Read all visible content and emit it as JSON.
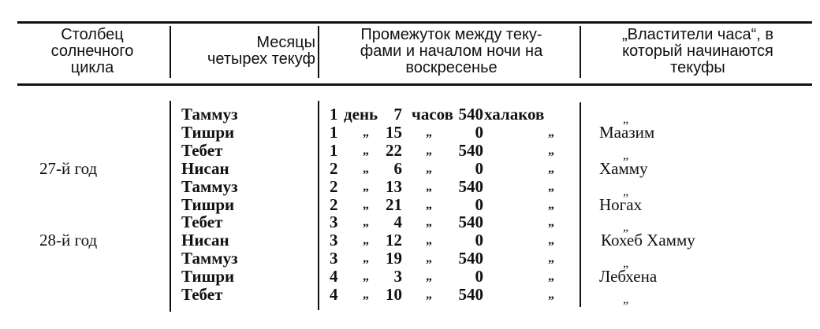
{
  "headers": [
    "Столбец солнечного цикла",
    "Месяцы четырех текуф",
    "Промежуток между текуфами и началом ночи на воскресенье",
    "„Властители часа“, в который начинаются текуфы"
  ],
  "header_lines": [
    [
      "Столбец",
      "солнечного",
      "цикла"
    ],
    [
      "Месяцы",
      "четырех текуф"
    ],
    [
      "Промежуток между теку-",
      "фами и началом ночи на",
      "воскресенье"
    ],
    [
      "„Властители часа“, в",
      "который начинаются",
      "текуфы"
    ]
  ],
  "years": [
    {
      "label": "27-й год",
      "row": 3
    },
    {
      "label": "28-й год",
      "row": 7
    }
  ],
  "rows": [
    {
      "month": "Таммуз",
      "days": "1",
      "days_unit": "день",
      "hours": "7",
      "hours_unit": "часов",
      "halakim": "540",
      "halakim_unit": "халаков",
      "ruler": "„"
    },
    {
      "month": "Тишри",
      "days": "1",
      "days_unit": "„",
      "hours": "15",
      "hours_unit": "„",
      "halakim": "0",
      "halakim_unit": "„",
      "ruler": "Маазим"
    },
    {
      "month": "Тебет",
      "days": "1",
      "days_unit": "„",
      "hours": "22",
      "hours_unit": "„",
      "halakim": "540",
      "halakim_unit": "„",
      "ruler": "„"
    },
    {
      "month": "Нисан",
      "days": "2",
      "days_unit": "„",
      "hours": "6",
      "hours_unit": "„",
      "halakim": "0",
      "halakim_unit": "„",
      "ruler": "Хамму"
    },
    {
      "month": "Таммуз",
      "days": "2",
      "days_unit": "„",
      "hours": "13",
      "hours_unit": "„",
      "halakim": "540",
      "halakim_unit": "„",
      "ruler": "„"
    },
    {
      "month": "Тишри",
      "days": "2",
      "days_unit": "„",
      "hours": "21",
      "hours_unit": "„",
      "halakim": "0",
      "halakim_unit": "„",
      "ruler": "Ногах"
    },
    {
      "month": "Тебет",
      "days": "3",
      "days_unit": "„",
      "hours": "4",
      "hours_unit": "„",
      "halakim": "540",
      "halakim_unit": "„",
      "ruler": "„"
    },
    {
      "month": "Нисан",
      "days": "3",
      "days_unit": "„",
      "hours": "12",
      "hours_unit": "„",
      "halakim": "0",
      "halakim_unit": "„",
      "ruler": "Кохеб Хамму"
    },
    {
      "month": "Таммуз",
      "days": "3",
      "days_unit": "„",
      "hours": "19",
      "hours_unit": "„",
      "halakim": "540",
      "halakim_unit": "„",
      "ruler": "„"
    },
    {
      "month": "Тишри",
      "days": "4",
      "days_unit": "„",
      "hours": "3",
      "hours_unit": "„",
      "halakim": "0",
      "halakim_unit": "„",
      "ruler": "Лебхена"
    },
    {
      "month": "Тебет",
      "days": "4",
      "days_unit": "„",
      "hours": "10",
      "hours_unit": "„",
      "halakim": "540",
      "halakim_unit": "„",
      "ruler": "„"
    }
  ]
}
